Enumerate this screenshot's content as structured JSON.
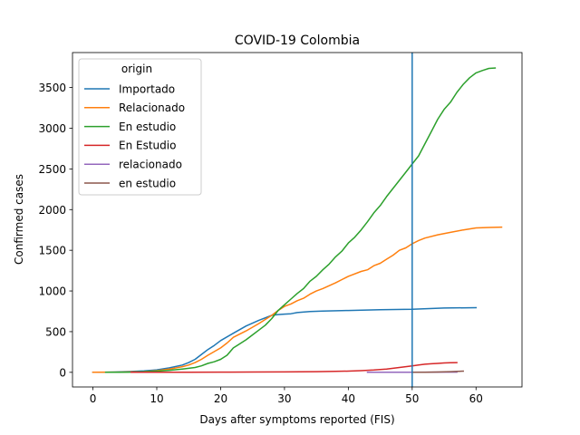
{
  "chart_data": {
    "type": "line",
    "title": "COVID-19 Colombia",
    "xlabel": "Days after symptoms reported (FIS)",
    "ylabel": "Confirmed cases",
    "xlim": [
      -3.2,
      67.2
    ],
    "ylim": [
      -180,
      3930
    ],
    "xticks": [
      0,
      10,
      20,
      30,
      40,
      50,
      60
    ],
    "yticks": [
      0,
      500,
      1000,
      1500,
      2000,
      2500,
      3000,
      3500
    ],
    "vline_x": 50,
    "vline_color": "#1f77b4",
    "legend_title": "origin",
    "legend_position": "upper-left",
    "series": [
      {
        "name": "Importado",
        "color": "#1f77b4",
        "points": [
          [
            0,
            0
          ],
          [
            2,
            2
          ],
          [
            4,
            5
          ],
          [
            6,
            10
          ],
          [
            8,
            18
          ],
          [
            10,
            30
          ],
          [
            12,
            55
          ],
          [
            14,
            90
          ],
          [
            15,
            120
          ],
          [
            16,
            160
          ],
          [
            17,
            220
          ],
          [
            18,
            280
          ],
          [
            19,
            330
          ],
          [
            20,
            390
          ],
          [
            22,
            480
          ],
          [
            24,
            570
          ],
          [
            26,
            640
          ],
          [
            28,
            700
          ],
          [
            29,
            710
          ],
          [
            30,
            715
          ],
          [
            31,
            720
          ],
          [
            32,
            735
          ],
          [
            34,
            748
          ],
          [
            36,
            752
          ],
          [
            40,
            760
          ],
          [
            45,
            770
          ],
          [
            50,
            775
          ],
          [
            55,
            790
          ],
          [
            60,
            795
          ]
        ]
      },
      {
        "name": "Relacionado",
        "color": "#ff7f0e",
        "points": [
          [
            0,
            0
          ],
          [
            4,
            3
          ],
          [
            8,
            8
          ],
          [
            10,
            20
          ],
          [
            12,
            40
          ],
          [
            14,
            70
          ],
          [
            15,
            90
          ],
          [
            16,
            120
          ],
          [
            17,
            160
          ],
          [
            18,
            210
          ],
          [
            20,
            300
          ],
          [
            21,
            360
          ],
          [
            22,
            430
          ],
          [
            24,
            510
          ],
          [
            26,
            600
          ],
          [
            28,
            700
          ],
          [
            29,
            760
          ],
          [
            30,
            810
          ],
          [
            31,
            840
          ],
          [
            32,
            880
          ],
          [
            33,
            910
          ],
          [
            34,
            960
          ],
          [
            35,
            1000
          ],
          [
            36,
            1030
          ],
          [
            38,
            1100
          ],
          [
            39,
            1140
          ],
          [
            40,
            1180
          ],
          [
            42,
            1240
          ],
          [
            43,
            1260
          ],
          [
            44,
            1310
          ],
          [
            45,
            1340
          ],
          [
            46,
            1390
          ],
          [
            47,
            1440
          ],
          [
            48,
            1500
          ],
          [
            49,
            1530
          ],
          [
            50,
            1580
          ],
          [
            51,
            1620
          ],
          [
            52,
            1650
          ],
          [
            54,
            1690
          ],
          [
            56,
            1720
          ],
          [
            58,
            1750
          ],
          [
            60,
            1775
          ],
          [
            62,
            1780
          ],
          [
            64,
            1785
          ]
        ]
      },
      {
        "name": "En estudio",
        "color": "#2ca02c",
        "points": [
          [
            2,
            0
          ],
          [
            4,
            1
          ],
          [
            6,
            3
          ],
          [
            8,
            8
          ],
          [
            10,
            15
          ],
          [
            12,
            25
          ],
          [
            14,
            40
          ],
          [
            16,
            60
          ],
          [
            17,
            80
          ],
          [
            18,
            110
          ],
          [
            19,
            130
          ],
          [
            20,
            160
          ],
          [
            21,
            210
          ],
          [
            22,
            300
          ],
          [
            23,
            350
          ],
          [
            24,
            400
          ],
          [
            25,
            460
          ],
          [
            26,
            520
          ],
          [
            27,
            580
          ],
          [
            28,
            660
          ],
          [
            29,
            760
          ],
          [
            30,
            830
          ],
          [
            31,
            900
          ],
          [
            32,
            970
          ],
          [
            33,
            1030
          ],
          [
            34,
            1120
          ],
          [
            35,
            1180
          ],
          [
            36,
            1260
          ],
          [
            37,
            1330
          ],
          [
            38,
            1420
          ],
          [
            39,
            1490
          ],
          [
            40,
            1590
          ],
          [
            41,
            1660
          ],
          [
            42,
            1750
          ],
          [
            43,
            1850
          ],
          [
            44,
            1960
          ],
          [
            45,
            2050
          ],
          [
            46,
            2160
          ],
          [
            47,
            2260
          ],
          [
            48,
            2360
          ],
          [
            49,
            2460
          ],
          [
            50,
            2560
          ],
          [
            51,
            2660
          ],
          [
            52,
            2810
          ],
          [
            53,
            2960
          ],
          [
            54,
            3110
          ],
          [
            55,
            3230
          ],
          [
            56,
            3320
          ],
          [
            57,
            3440
          ],
          [
            58,
            3540
          ],
          [
            59,
            3620
          ],
          [
            60,
            3680
          ],
          [
            61,
            3710
          ],
          [
            62,
            3735
          ],
          [
            63,
            3740
          ]
        ]
      },
      {
        "name": "En Estudio",
        "color": "#d62728",
        "points": [
          [
            6,
            0
          ],
          [
            10,
            1
          ],
          [
            15,
            2
          ],
          [
            20,
            3
          ],
          [
            25,
            4
          ],
          [
            30,
            5
          ],
          [
            35,
            8
          ],
          [
            38,
            12
          ],
          [
            40,
            15
          ],
          [
            42,
            20
          ],
          [
            44,
            28
          ],
          [
            46,
            40
          ],
          [
            48,
            60
          ],
          [
            50,
            80
          ],
          [
            51,
            90
          ],
          [
            52,
            100
          ],
          [
            53,
            105
          ],
          [
            54,
            110
          ],
          [
            55,
            115
          ],
          [
            56,
            118
          ],
          [
            57,
            120
          ]
        ]
      },
      {
        "name": "relacionado",
        "color": "#9467bd",
        "points": [
          [
            43,
            0
          ],
          [
            46,
            1
          ],
          [
            50,
            2
          ],
          [
            54,
            3
          ],
          [
            57,
            3
          ]
        ]
      },
      {
        "name": "en estudio",
        "color": "#8c564b",
        "points": [
          [
            50,
            0
          ],
          [
            52,
            2
          ],
          [
            54,
            4
          ],
          [
            56,
            8
          ],
          [
            58,
            15
          ]
        ]
      }
    ]
  }
}
